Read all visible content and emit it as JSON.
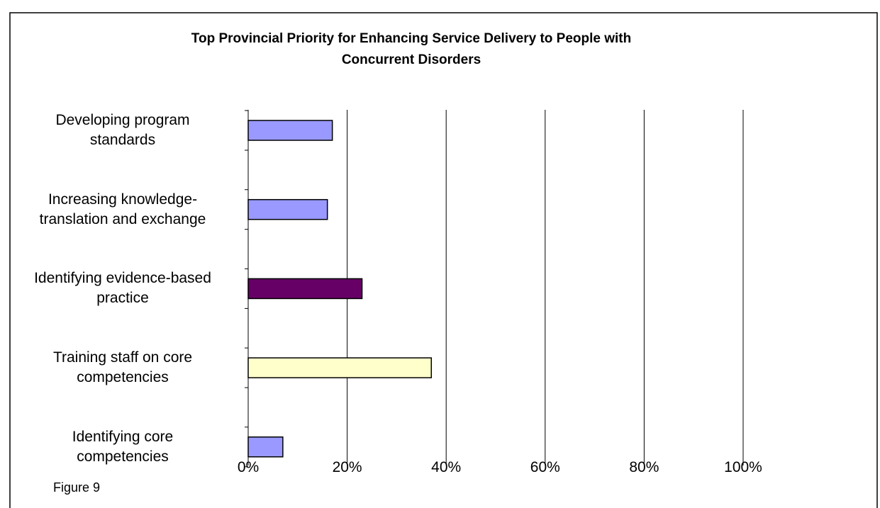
{
  "chart_data": {
    "type": "bar",
    "orientation": "horizontal",
    "title": "Top Provincial Priority  for Enhancing Service Delivery to People with\nConcurrent Disorders",
    "categories": [
      "Developing program\nstandards",
      "Increasing knowledge-\ntranslation and exchange",
      "Identifying evidence-based\npractice",
      "Training staff on core\ncompetencies",
      "Identifying core\ncompetencies"
    ],
    "values": [
      17,
      16,
      23,
      37,
      7
    ],
    "colors": [
      "#9999ff",
      "#9999ff",
      "#660066",
      "#ffffcc",
      "#9999ff"
    ],
    "xlim": [
      0,
      100
    ],
    "xticks": [
      {
        "value": 0,
        "label": "0%"
      },
      {
        "value": 20,
        "label": "20%"
      },
      {
        "value": 40,
        "label": "40%"
      },
      {
        "value": 60,
        "label": "60%"
      },
      {
        "value": 80,
        "label": "80%"
      },
      {
        "value": 100,
        "label": "100%"
      }
    ],
    "grid": true
  },
  "caption": "Figure 9"
}
